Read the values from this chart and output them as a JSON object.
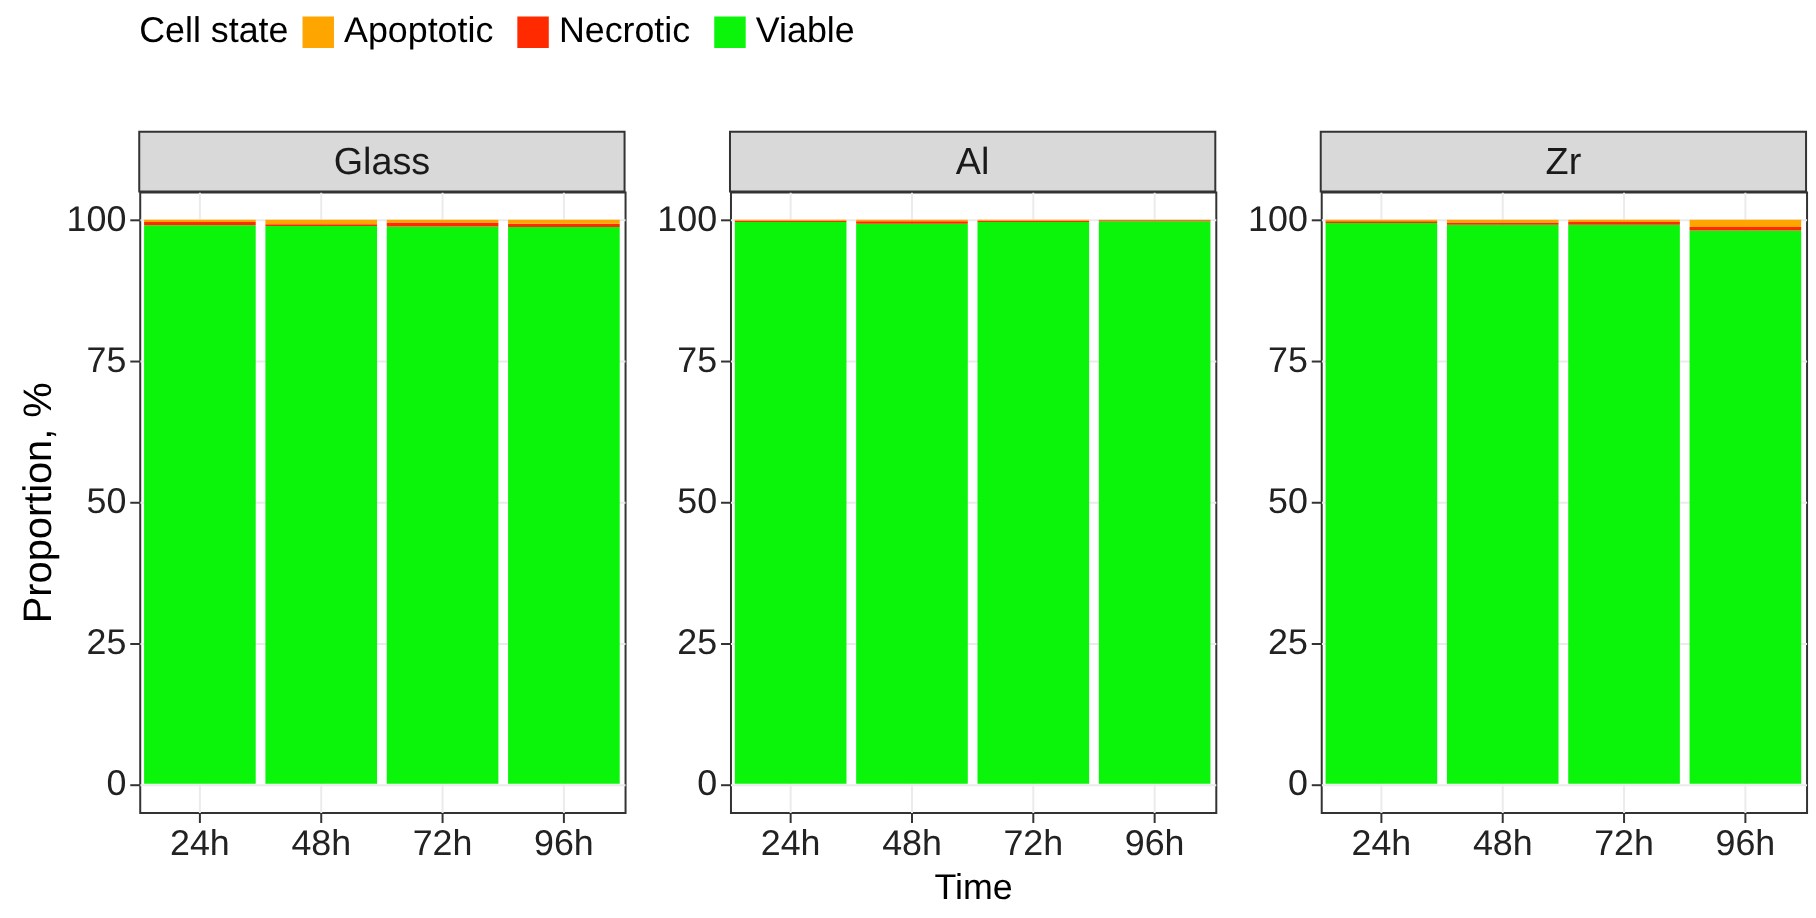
{
  "chart_data": [
    {
      "type": "bar",
      "title": "Glass",
      "ylabel": "Proportion, %",
      "legend_title": "Cell state",
      "legend": "top",
      "stacked": true,
      "grid": true,
      "categories": [
        "24h",
        "48h",
        "72h",
        "96h"
      ],
      "ylim": [
        -5,
        105
      ],
      "yticks": [
        0,
        25,
        50,
        75,
        100
      ],
      "series": [
        {
          "name": "Viable",
          "color": "#0af50a",
          "values": [
            99.0,
            98.9,
            98.8,
            98.7
          ]
        },
        {
          "name": "Necrotic",
          "color": "#ff2a00",
          "values": [
            0.6,
            0.3,
            0.7,
            0.6
          ]
        },
        {
          "name": "Apoptotic",
          "color": "#ffa500",
          "values": [
            0.4,
            0.8,
            0.5,
            0.7
          ]
        }
      ]
    },
    {
      "type": "bar",
      "title": "Al",
      "xlabel": "Time",
      "stacked": true,
      "grid": true,
      "categories": [
        "24h",
        "48h",
        "72h",
        "96h"
      ],
      "ylim": [
        -5,
        105
      ],
      "yticks": [
        0,
        25,
        50,
        75,
        100
      ],
      "series": [
        {
          "color": "#0af50a",
          "values": [
            99.6,
            99.3,
            99.6,
            99.7
          ]
        },
        {
          "color": "#ff2a00",
          "values": [
            0.2,
            0.4,
            0.2,
            0.2
          ]
        },
        {
          "color": "#ffa500",
          "values": [
            0.2,
            0.3,
            0.2,
            0.1
          ]
        }
      ]
    },
    {
      "type": "bar",
      "title": "Zr",
      "stacked": true,
      "grid": true,
      "categories": [
        "24h",
        "48h",
        "72h",
        "96h"
      ],
      "ylim": [
        -5,
        105
      ],
      "yticks": [
        0,
        25,
        50,
        75,
        100
      ],
      "series": [
        {
          "color": "#0af50a",
          "values": [
            99.4,
            99.1,
            99.1,
            98.1
          ]
        },
        {
          "color": "#ff2a00",
          "values": [
            0.3,
            0.4,
            0.5,
            0.6
          ]
        },
        {
          "color": "#ffa500",
          "values": [
            0.3,
            0.5,
            0.4,
            1.3
          ]
        }
      ]
    }
  ]
}
